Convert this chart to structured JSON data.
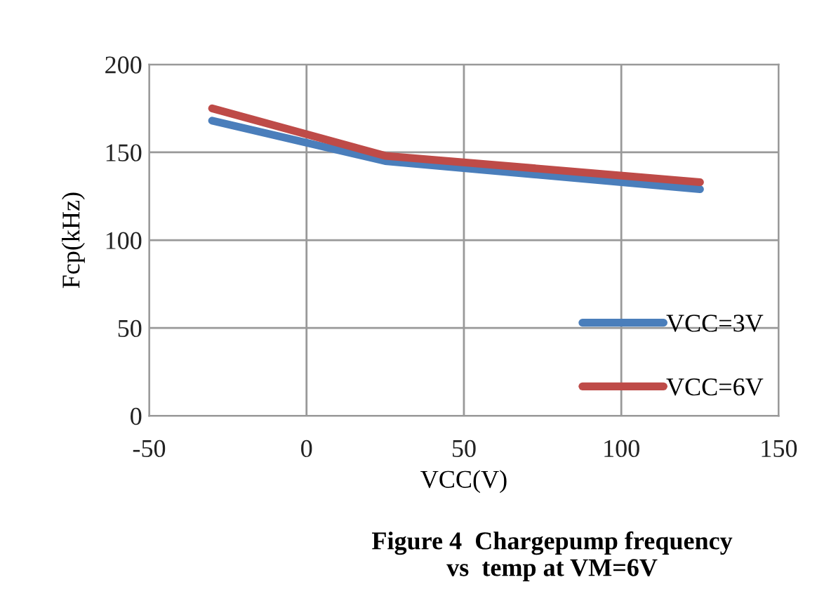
{
  "chart_data": {
    "type": "line",
    "xlabel": "VCC(V)",
    "ylabel": "Fcp(kHz)",
    "annotations": [
      "Figure 4  Chargepump frequency\nvs  temp at VM=6V"
    ],
    "xlim": [
      -50,
      150
    ],
    "xticks": [
      -50,
      0,
      50,
      100,
      150
    ],
    "ylim": [
      0,
      200
    ],
    "yticks": [
      0,
      50,
      100,
      150,
      200
    ],
    "grid": true,
    "legend": "bottom right",
    "marker": "none",
    "line_style": "solid",
    "series": [
      {
        "name": "VCC=3V",
        "color": "#4a7ebb",
        "x": [
          -30,
          25,
          125
        ],
        "values": [
          168,
          145,
          129
        ]
      },
      {
        "name": "VCC=6V",
        "color": "#be4b48",
        "x": [
          -30,
          25,
          125
        ],
        "values": [
          175,
          148,
          133
        ]
      }
    ]
  }
}
